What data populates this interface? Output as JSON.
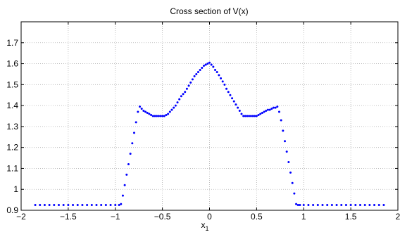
{
  "chart_data": {
    "type": "scatter",
    "title": "Cross section of V(x)",
    "xlabel": "x",
    "xlabel_subscript": "1",
    "ylabel": "",
    "xlim": [
      -2,
      2
    ],
    "ylim": [
      0.9,
      1.8
    ],
    "xticks": [
      -2,
      -1.5,
      -1,
      -0.5,
      0,
      0.5,
      1,
      1.5,
      2
    ],
    "xtick_labels": [
      "−2",
      "−1.5",
      "−1",
      "−0.5",
      "0",
      "0.5",
      "1",
      "1.5",
      "2"
    ],
    "yticks": [
      0.9,
      1,
      1.1,
      1.2,
      1.3,
      1.4,
      1.5,
      1.6,
      1.7
    ],
    "ytick_labels": [
      "0.9",
      "1",
      "1.1",
      "1.2",
      "1.3",
      "1.4",
      "1.5",
      "1.6",
      "1.7"
    ],
    "grid": true,
    "marker_color": "#0000ff",
    "series": [
      {
        "x": [
          -1.85,
          -1.8,
          -1.75,
          -1.7,
          -1.65,
          -1.6,
          -1.55,
          -1.5,
          -1.45,
          -1.4,
          -1.35,
          -1.3,
          -1.25,
          -1.2,
          -1.15,
          -1.1,
          -1.05,
          -1.0,
          -0.96,
          -0.94,
          -0.92,
          -0.9,
          -0.88,
          -0.86,
          -0.84,
          -0.82,
          -0.8,
          -0.78,
          -0.76,
          -0.74,
          -0.72,
          -0.7,
          -0.68,
          -0.66,
          -0.64,
          -0.62,
          -0.6,
          -0.58,
          -0.56,
          -0.54,
          -0.52,
          -0.5,
          -0.48,
          -0.46,
          -0.44,
          -0.42,
          -0.4,
          -0.38,
          -0.36,
          -0.34,
          -0.32,
          -0.3,
          -0.28,
          -0.26,
          -0.24,
          -0.22,
          -0.2,
          -0.18,
          -0.16,
          -0.14,
          -0.12,
          -0.1,
          -0.08,
          -0.06,
          -0.04,
          -0.02,
          0.0,
          0.02,
          0.04,
          0.06,
          0.08,
          0.1,
          0.12,
          0.14,
          0.16,
          0.18,
          0.2,
          0.22,
          0.24,
          0.26,
          0.28,
          0.3,
          0.32,
          0.34,
          0.36,
          0.38,
          0.4,
          0.42,
          0.44,
          0.46,
          0.48,
          0.5,
          0.52,
          0.54,
          0.56,
          0.58,
          0.6,
          0.62,
          0.64,
          0.66,
          0.68,
          0.7,
          0.72,
          0.74,
          0.76,
          0.78,
          0.8,
          0.82,
          0.84,
          0.86,
          0.88,
          0.9,
          0.92,
          0.94,
          0.96,
          1.0,
          1.05,
          1.1,
          1.15,
          1.2,
          1.25,
          1.3,
          1.35,
          1.4,
          1.45,
          1.5,
          1.55,
          1.6,
          1.65,
          1.7,
          1.75,
          1.8,
          1.85
        ],
        "y": [
          0.925,
          0.925,
          0.925,
          0.925,
          0.925,
          0.925,
          0.925,
          0.925,
          0.925,
          0.925,
          0.925,
          0.925,
          0.925,
          0.925,
          0.925,
          0.925,
          0.925,
          0.925,
          0.925,
          0.93,
          0.97,
          1.02,
          1.07,
          1.12,
          1.17,
          1.22,
          1.27,
          1.32,
          1.37,
          1.395,
          1.385,
          1.375,
          1.37,
          1.365,
          1.36,
          1.355,
          1.35,
          1.35,
          1.35,
          1.35,
          1.35,
          1.35,
          1.35,
          1.355,
          1.36,
          1.37,
          1.38,
          1.39,
          1.4,
          1.415,
          1.43,
          1.445,
          1.455,
          1.465,
          1.48,
          1.495,
          1.51,
          1.525,
          1.54,
          1.55,
          1.56,
          1.57,
          1.58,
          1.59,
          1.595,
          1.6,
          1.605,
          1.595,
          1.585,
          1.57,
          1.56,
          1.545,
          1.53,
          1.515,
          1.5,
          1.48,
          1.465,
          1.45,
          1.435,
          1.42,
          1.405,
          1.39,
          1.375,
          1.36,
          1.35,
          1.35,
          1.35,
          1.35,
          1.35,
          1.35,
          1.35,
          1.35,
          1.355,
          1.36,
          1.365,
          1.37,
          1.375,
          1.38,
          1.38,
          1.385,
          1.39,
          1.39,
          1.395,
          1.37,
          1.33,
          1.28,
          1.23,
          1.18,
          1.13,
          1.08,
          1.03,
          0.98,
          0.93,
          0.925,
          0.925,
          0.925,
          0.925,
          0.925,
          0.925,
          0.925,
          0.925,
          0.925,
          0.925,
          0.925,
          0.925,
          0.925,
          0.925,
          0.925,
          0.925,
          0.925,
          0.925,
          0.925,
          0.925
        ]
      }
    ]
  }
}
